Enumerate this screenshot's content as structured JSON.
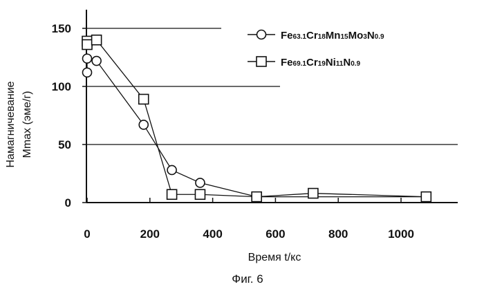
{
  "figure_caption": "Фиг. 6",
  "chart_data": {
    "type": "line",
    "xlabel": "Время t/кс",
    "ylabel_line1": "Намагничевание",
    "ylabel_line2": "Mmax (эме/г)",
    "xlim": [
      0,
      1150
    ],
    "ylim": [
      0,
      160
    ],
    "x_ticks": [
      0,
      200,
      400,
      600,
      800,
      1000
    ],
    "y_ticks": [
      0,
      50,
      100,
      150
    ],
    "x_tick_labels": [
      "0",
      "200",
      "400",
      "600",
      "800",
      "1000"
    ],
    "y_tick_labels": [
      "0",
      "50",
      "100",
      "150"
    ],
    "gridlines_y": [
      50,
      100,
      150
    ],
    "legend_position": "top-right",
    "series": [
      {
        "name": "Fe63.1Cr18Mn15Mo3N0.9",
        "marker": "circle",
        "name_parts": [
          {
            "t": "Fe",
            "sub": false
          },
          {
            "t": "63.1",
            "sub": true
          },
          {
            "t": "Cr",
            "sub": false
          },
          {
            "t": "18",
            "sub": true
          },
          {
            "t": "Mn",
            "sub": false
          },
          {
            "t": "15",
            "sub": true
          },
          {
            "t": "Mo",
            "sub": false
          },
          {
            "t": "3",
            "sub": true
          },
          {
            "t": "N",
            "sub": false
          },
          {
            "t": "0.9",
            "sub": true
          }
        ],
        "points": [
          [
            0,
            112
          ],
          [
            0,
            124
          ],
          [
            30,
            122
          ],
          [
            180,
            67
          ],
          [
            270,
            28
          ],
          [
            360,
            17
          ],
          [
            540,
            5
          ],
          [
            1080,
            5
          ]
        ]
      },
      {
        "name": "Fe69.1Cr19Ni11N0.9",
        "marker": "square",
        "name_parts": [
          {
            "t": "Fe",
            "sub": false
          },
          {
            "t": "69.1",
            "sub": true
          },
          {
            "t": "Cr",
            "sub": false
          },
          {
            "t": "19",
            "sub": true
          },
          {
            "t": "Ni",
            "sub": false
          },
          {
            "t": "11",
            "sub": true
          },
          {
            "t": "N",
            "sub": false
          },
          {
            "t": "0.9",
            "sub": true
          }
        ],
        "points": [
          [
            0,
            139
          ],
          [
            0,
            136
          ],
          [
            30,
            140
          ],
          [
            180,
            89
          ],
          [
            270,
            7
          ],
          [
            360,
            7
          ],
          [
            540,
            5
          ],
          [
            720,
            8
          ],
          [
            1080,
            5
          ]
        ]
      }
    ]
  }
}
